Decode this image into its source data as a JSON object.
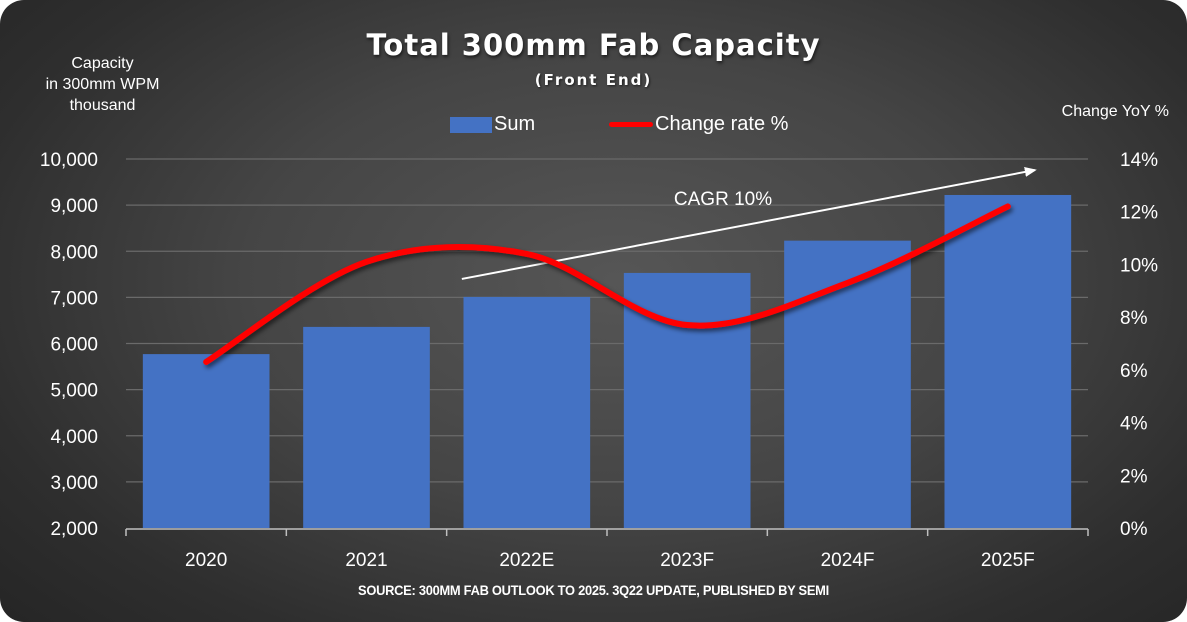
{
  "chart_data": {
    "type": "bar",
    "title": "Total 300mm Fab Capacity",
    "subtitle": "(Front End)",
    "ylabel": "Capacity in 300mm WPM thousand",
    "ylabel_lines": [
      "Capacity",
      "in 300mm WPM",
      "thousand"
    ],
    "y2label": "Change YoY %",
    "categories": [
      "2020",
      "2021",
      "2022E",
      "2023F",
      "2024F",
      "2025F"
    ],
    "series": [
      {
        "name": "Sum",
        "type": "bar",
        "axis": "left",
        "color": "#4472c4",
        "values": [
          5770,
          6360,
          7010,
          7530,
          8230,
          9220
        ]
      },
      {
        "name": "Change rate %",
        "type": "line",
        "axis": "right",
        "color": "#ff0000",
        "smooth": true,
        "values": [
          6.3,
          10.1,
          10.4,
          7.7,
          9.3,
          12.2
        ]
      }
    ],
    "ylim": [
      2000,
      10000
    ],
    "yticks": [
      2000,
      3000,
      4000,
      5000,
      6000,
      7000,
      8000,
      9000,
      10000
    ],
    "ytick_labels": [
      "2,000",
      "3,000",
      "4,000",
      "5,000",
      "6,000",
      "7,000",
      "8,000",
      "9,000",
      "10,000"
    ],
    "y2lim": [
      0,
      14
    ],
    "y2ticks": [
      0,
      2,
      4,
      6,
      8,
      10,
      12,
      14
    ],
    "y2tick_labels": [
      "0%",
      "2%",
      "4%",
      "6%",
      "8%",
      "10%",
      "12%",
      "14%"
    ],
    "grid": true,
    "legend": {
      "placement": "top-center",
      "entries": [
        "Sum",
        "Change rate %"
      ]
    },
    "annotations": [
      {
        "text": "CAGR 10%",
        "kind": "trend-arrow",
        "from_category": "2022E",
        "to_category": "2025F",
        "color": "#ffffff"
      }
    ],
    "source": "SOURCE: 300MM FAB OUTLOOK TO 2025. 3Q22 UPDATE, PUBLISHED BY SEMI"
  }
}
